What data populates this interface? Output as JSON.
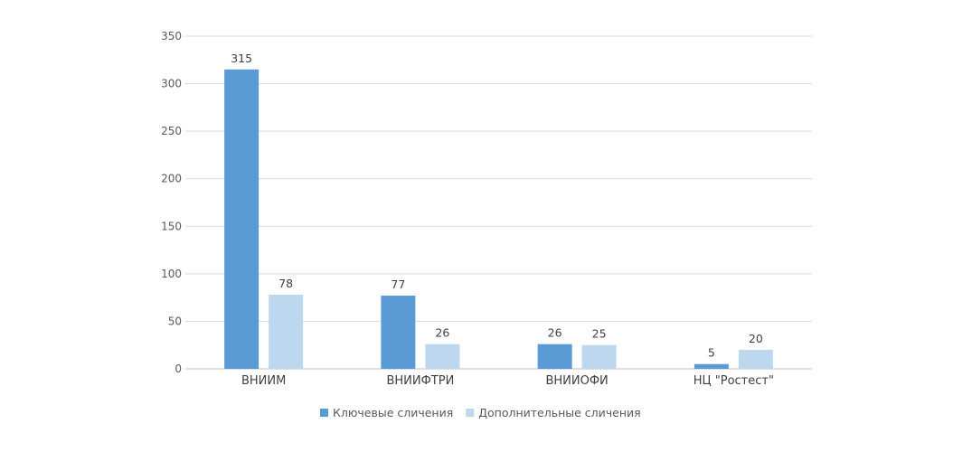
{
  "chart_data": {
    "type": "bar",
    "categories": [
      "ВНИИМ",
      "ВНИИФТРИ",
      "ВНИИОФИ",
      "НЦ \"Ростест\""
    ],
    "series": [
      {
        "name": "Ключевые сличения",
        "values": [
          315,
          77,
          26,
          5
        ],
        "color": "#5B9BD5"
      },
      {
        "name": "Дополнительные сличения",
        "values": [
          78,
          26,
          25,
          20
        ],
        "color": "#BDD7EE"
      }
    ],
    "yticks": [
      0,
      50,
      100,
      150,
      200,
      250,
      300,
      350
    ],
    "ylim": [
      0,
      350
    ],
    "grid": true,
    "legend": "bottom"
  }
}
